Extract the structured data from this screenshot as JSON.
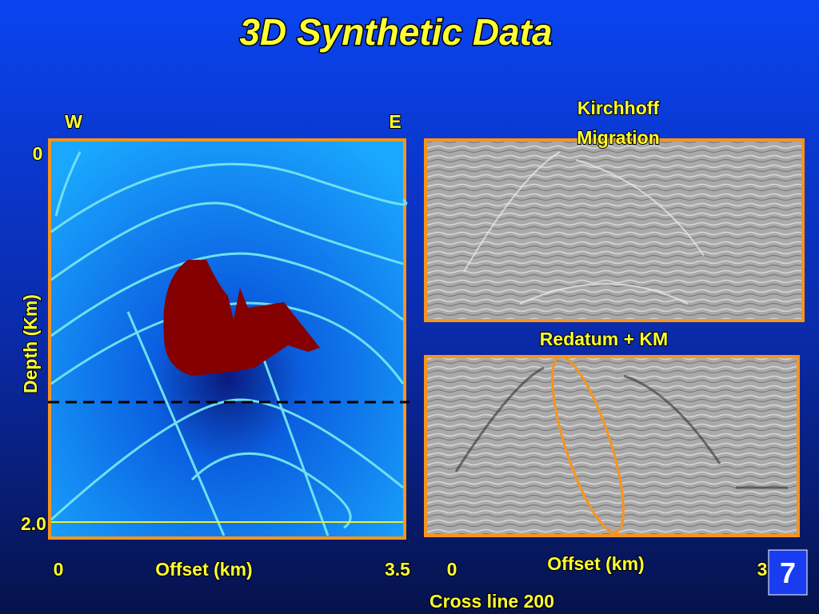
{
  "title": "3D Synthetic Data",
  "left_panel": {
    "west": "W",
    "east": "E",
    "depth_top": "0",
    "depth_bottom": "2.0",
    "depth_label": "Depth (Km)",
    "offset_start": "0",
    "offset_label": "Offset (km)",
    "offset_end": "3.5"
  },
  "right_top": {
    "title_line1": "Kirchhoff",
    "title_line2": "Migration"
  },
  "right_bottom": {
    "title": "Redatum + KM",
    "offset_start": "0",
    "offset_label": "Offset (km)",
    "offset_end": "3"
  },
  "footer": "Cross line 200",
  "slide_number": "7"
}
